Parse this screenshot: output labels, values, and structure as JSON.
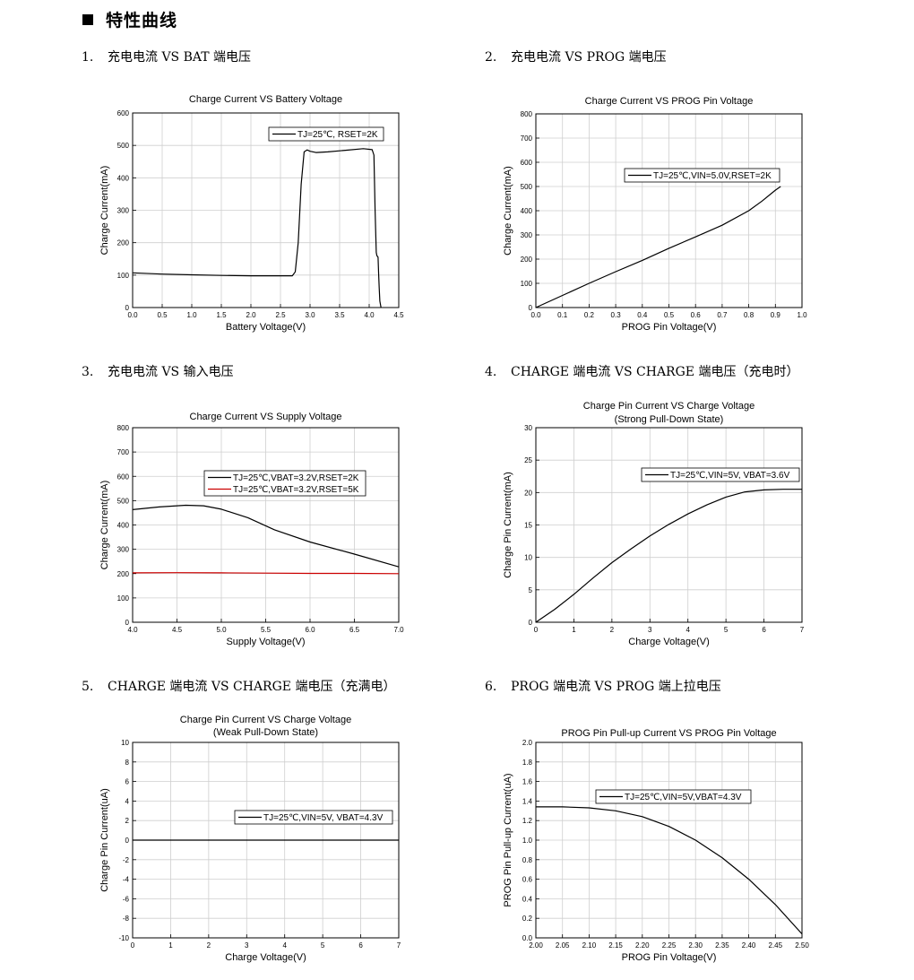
{
  "section_title": "特性曲线",
  "charts": [
    {
      "caption_num": "1.",
      "caption": "充电电流 VS BAT 端电压",
      "chart_data": {
        "type": "line",
        "title": [
          "Charge Current VS Battery Voltage"
        ],
        "xlabel": "Battery Voltage(V)",
        "ylabel": "Charge Current(mA)",
        "xlim": [
          0,
          4.5
        ],
        "ylim": [
          0,
          600
        ],
        "xticks": [
          0,
          0.5,
          1,
          1.5,
          2,
          2.5,
          3,
          3.5,
          4,
          4.5
        ],
        "xtick_labels": [
          "0.0",
          "0.5",
          "1.0",
          "1.5",
          "2.0",
          "2.5",
          "3.0",
          "3.5",
          "4.0",
          "4.5"
        ],
        "yticks": [
          0,
          100,
          200,
          300,
          400,
          500,
          600
        ],
        "ytick_labels": [
          "0",
          "100",
          "200",
          "300",
          "400",
          "500",
          "600"
        ],
        "grid": true,
        "legend_position": "top-right",
        "series": [
          {
            "name": "TJ=25℃, RSET=2K",
            "color": "#000000",
            "x": [
              0,
              0.5,
              1.0,
              1.5,
              2.0,
              2.5,
              2.7,
              2.75,
              2.8,
              2.85,
              2.9,
              2.95,
              3.0,
              3.1,
              3.3,
              3.6,
              3.9,
              4.05,
              4.08,
              4.1,
              4.12,
              4.13,
              4.15,
              4.16,
              4.17,
              4.18,
              4.2
            ],
            "y": [
              107,
              103,
              101,
              99,
              98,
              98,
              98,
              110,
              200,
              380,
              480,
              486,
              482,
              478,
              480,
              485,
              490,
              487,
              470,
              300,
              170,
              160,
              155,
              100,
              60,
              20,
              0
            ]
          }
        ]
      }
    },
    {
      "caption_num": "2.",
      "caption": "充电电流 VS PROG 端电压",
      "chart_data": {
        "type": "line",
        "title": [
          "Charge Current VS PROG Pin Voltage"
        ],
        "xlabel": "PROG Pin Voltage(V)",
        "ylabel": "Charge Current(mA)",
        "xlim": [
          0,
          1.0
        ],
        "ylim": [
          0,
          800
        ],
        "xticks": [
          0,
          0.1,
          0.2,
          0.3,
          0.4,
          0.5,
          0.6,
          0.7,
          0.8,
          0.9,
          1.0
        ],
        "xtick_labels": [
          "0.0",
          "0.1",
          "0.2",
          "0.3",
          "0.4",
          "0.5",
          "0.6",
          "0.7",
          "0.8",
          "0.9",
          "1.0"
        ],
        "yticks": [
          0,
          100,
          200,
          300,
          400,
          500,
          600,
          700,
          800
        ],
        "ytick_labels": [
          "0",
          "100",
          "200",
          "300",
          "400",
          "500",
          "600",
          "700",
          "800"
        ],
        "grid": true,
        "legend_position": "middle-right",
        "series": [
          {
            "name": "TJ=25℃,VIN=5.0V,RSET=2K",
            "color": "#000000",
            "x": [
              0,
              0.1,
              0.2,
              0.3,
              0.4,
              0.5,
              0.6,
              0.7,
              0.8,
              0.85,
              0.9,
              0.92
            ],
            "y": [
              0,
              50,
              100,
              148,
              195,
              245,
              292,
              340,
              400,
              440,
              485,
              500
            ]
          }
        ]
      }
    },
    {
      "caption_num": "3.",
      "caption": "充电电流 VS  输入电压",
      "chart_data": {
        "type": "line",
        "title": [
          "Charge Current VS Supply Voltage"
        ],
        "xlabel": "Supply Voltage(V)",
        "ylabel": "Charge Current(mA)",
        "xlim": [
          4.0,
          7.0
        ],
        "ylim": [
          0,
          800
        ],
        "xticks": [
          4.0,
          4.5,
          5.0,
          5.5,
          6.0,
          6.5,
          7.0
        ],
        "xtick_labels": [
          "4.0",
          "4.5",
          "5.0",
          "5.5",
          "6.0",
          "6.5",
          "7.0"
        ],
        "yticks": [
          0,
          100,
          200,
          300,
          400,
          500,
          600,
          700,
          800
        ],
        "ytick_labels": [
          "0",
          "100",
          "200",
          "300",
          "400",
          "500",
          "600",
          "700",
          "800"
        ],
        "grid": true,
        "legend_position": "middle-right",
        "series": [
          {
            "name": "TJ=25℃,VBAT=3.2V,RSET=2K",
            "color": "#000000",
            "x": [
              4.0,
              4.3,
              4.6,
              4.8,
              5.0,
              5.3,
              5.6,
              6.0,
              6.5,
              7.0
            ],
            "y": [
              463,
              474,
              481,
              479,
              465,
              430,
              380,
              330,
              280,
              228
            ]
          },
          {
            "name": "TJ=25℃,VBAT=3.2V,RSET=5K",
            "color": "#cc0000",
            "x": [
              4.0,
              4.5,
              5.0,
              5.5,
              6.0,
              6.5,
              7.0
            ],
            "y": [
              203,
              204,
              203,
              202,
              201,
              201,
              200
            ]
          }
        ]
      }
    },
    {
      "caption_num": "4.",
      "caption": "CHARGE 端电流  VS CHARGE 端电压（充电时）",
      "chart_data": {
        "type": "line",
        "title": [
          "Charge Pin Current VS Charge Voltage",
          "(Strong Pull-Down State)"
        ],
        "xlabel": "Charge Voltage(V)",
        "ylabel": "Charge Pin Current(mA)",
        "xlim": [
          0,
          7
        ],
        "ylim": [
          0,
          30
        ],
        "xticks": [
          0,
          1,
          2,
          3,
          4,
          5,
          6,
          7
        ],
        "xtick_labels": [
          "0",
          "1",
          "2",
          "3",
          "4",
          "5",
          "6",
          "7"
        ],
        "yticks": [
          0,
          5,
          10,
          15,
          20,
          25,
          30
        ],
        "ytick_labels": [
          "0",
          "5",
          "10",
          "15",
          "20",
          "25",
          "30"
        ],
        "grid": true,
        "legend_position": "top-right",
        "series": [
          {
            "name": "TJ=25℃,VIN=5V, VBAT=3.6V",
            "color": "#000000",
            "x": [
              0,
              0.5,
              1,
              1.5,
              2,
              2.5,
              3,
              3.5,
              4,
              4.5,
              5,
              5.5,
              6,
              6.5,
              7
            ],
            "y": [
              0,
              2,
              4.3,
              6.8,
              9.2,
              11.3,
              13.3,
              15.1,
              16.7,
              18.1,
              19.3,
              20.1,
              20.4,
              20.5,
              20.5
            ]
          }
        ]
      }
    },
    {
      "caption_num": "5.",
      "caption": "CHARGE 端电流  VS CHARGE 端电压（充满电）",
      "chart_data": {
        "type": "line",
        "title": [
          "Charge Pin Current VS Charge Voltage",
          "(Weak Pull-Down State)"
        ],
        "xlabel": "Charge Voltage(V)",
        "ylabel": "Charge Pin Current(uA)",
        "xlim": [
          0,
          7
        ],
        "ylim": [
          -10,
          10
        ],
        "xticks": [
          0,
          1,
          2,
          3,
          4,
          5,
          6,
          7
        ],
        "xtick_labels": [
          "0",
          "1",
          "2",
          "3",
          "4",
          "5",
          "6",
          "7"
        ],
        "yticks": [
          -10,
          -8,
          -6,
          -4,
          -2,
          0,
          2,
          4,
          6,
          8,
          10
        ],
        "ytick_labels": [
          "-10",
          "-8",
          "-6",
          "-4",
          "-2",
          "0",
          "2",
          "4",
          "6",
          "8",
          "10"
        ],
        "grid": true,
        "legend_position": "middle-right",
        "series": [
          {
            "name": "TJ=25℃,VIN=5V, VBAT=4.3V",
            "color": "#000000",
            "x": [
              0,
              7
            ],
            "y": [
              0,
              0
            ]
          }
        ]
      }
    },
    {
      "caption_num": "6.",
      "caption": "PROG 端电流  VS PROG 端上拉电压",
      "chart_data": {
        "type": "line",
        "title": [
          "PROG Pin Pull-up Current VS PROG Pin Voltage"
        ],
        "xlabel": "PROG Pin Voltage(V)",
        "ylabel": "PROG Pin Pull-up Current(uA)",
        "xlim": [
          2.0,
          2.5
        ],
        "ylim": [
          0,
          2.0
        ],
        "xticks": [
          2.0,
          2.05,
          2.1,
          2.15,
          2.2,
          2.25,
          2.3,
          2.35,
          2.4,
          2.45,
          2.5
        ],
        "xtick_labels": [
          "2.00",
          "2.05",
          "2.10",
          "2.15",
          "2.20",
          "2.25",
          "2.30",
          "2.35",
          "2.40",
          "2.45",
          "2.50"
        ],
        "yticks": [
          0,
          0.2,
          0.4,
          0.6,
          0.8,
          1.0,
          1.2,
          1.4,
          1.6,
          1.8,
          2.0
        ],
        "ytick_labels": [
          "0.0",
          "0.2",
          "0.4",
          "0.6",
          "0.8",
          "1.0",
          "1.2",
          "1.4",
          "1.6",
          "1.8",
          "2.0"
        ],
        "grid": true,
        "legend_position": "top-right",
        "series": [
          {
            "name": "TJ=25℃,VIN=5V,VBAT=4.3V",
            "color": "#000000",
            "x": [
              2.0,
              2.05,
              2.1,
              2.15,
              2.2,
              2.25,
              2.3,
              2.35,
              2.4,
              2.45,
              2.5
            ],
            "y": [
              1.34,
              1.34,
              1.33,
              1.3,
              1.24,
              1.14,
              1.0,
              0.82,
              0.6,
              0.34,
              0.04
            ]
          }
        ]
      }
    }
  ]
}
